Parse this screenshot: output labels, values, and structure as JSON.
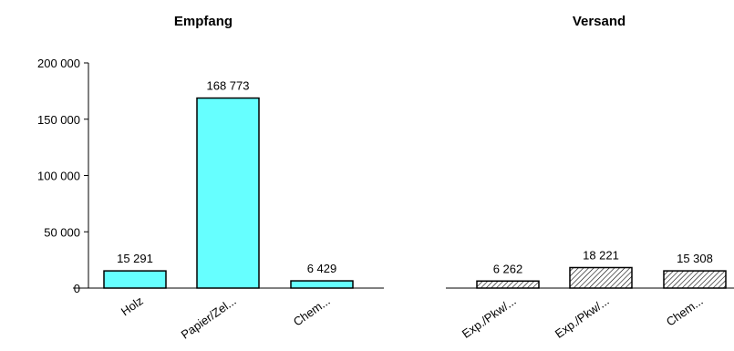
{
  "chart_data": {
    "type": "bar",
    "yticks": [
      "0",
      "50 000",
      "100 000",
      "150 000",
      "200 000"
    ],
    "ylim": [
      0,
      200000
    ],
    "grid": false,
    "groups": [
      {
        "title": "Empfang",
        "color": "#66ffff",
        "pattern": "solid",
        "categories": [
          "Holz",
          "Papier/Zel...",
          "Chem..."
        ],
        "values": [
          15291,
          168773,
          6429
        ],
        "value_labels": [
          "15 291",
          "168 773",
          "6 429"
        ]
      },
      {
        "title": "Versand",
        "color": "#ffffff",
        "pattern": "diagonal-hatch",
        "categories": [
          "Exp./Pkw/...",
          "Exp./Pkw/...",
          "Chem..."
        ],
        "values": [
          6262,
          18221,
          15308
        ],
        "value_labels": [
          "6 262",
          "18 221",
          "15 308"
        ]
      }
    ]
  }
}
